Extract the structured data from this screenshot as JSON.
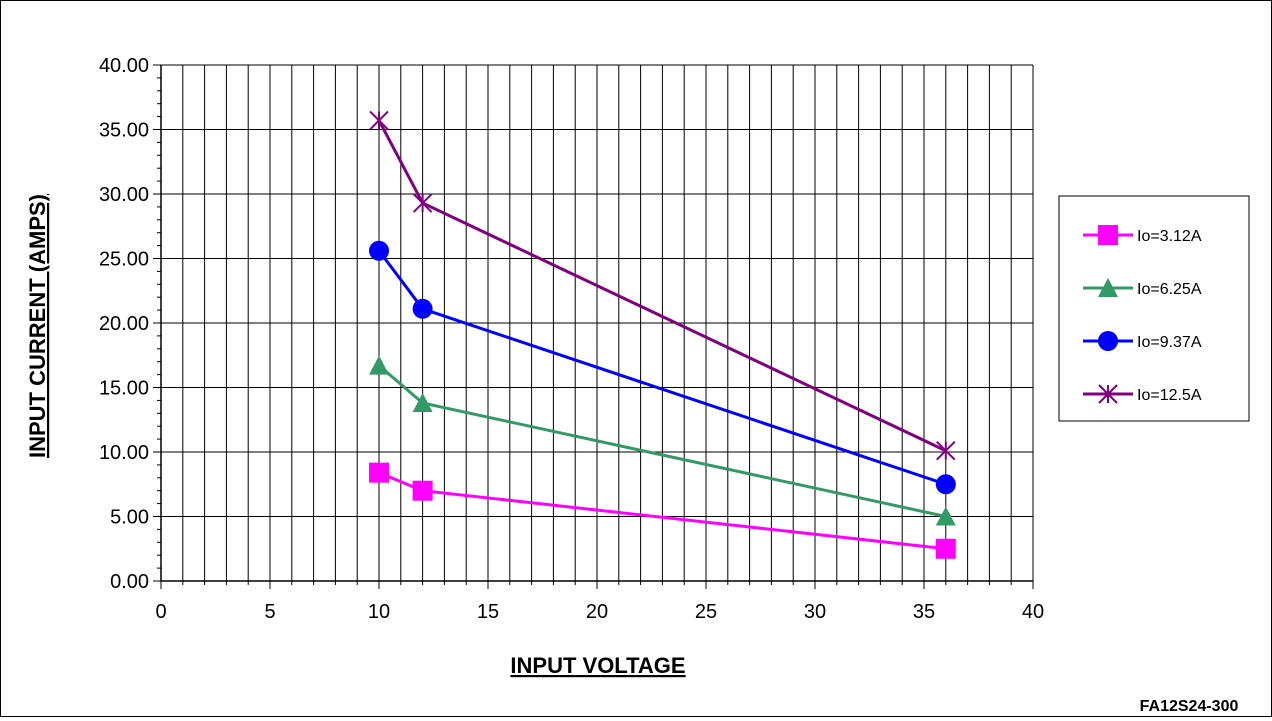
{
  "chart_data": {
    "type": "line",
    "title": "",
    "xlabel": "INPUT VOLTAGE",
    "ylabel": "INPUT CURRENT (AMPS)",
    "xlim": [
      0,
      40
    ],
    "ylim": [
      0,
      40
    ],
    "x_ticks": [
      0,
      5,
      10,
      15,
      20,
      25,
      30,
      35,
      40
    ],
    "y_ticks": [
      "0.00",
      "5.00",
      "10.00",
      "15.00",
      "20.00",
      "25.00",
      "30.00",
      "35.00",
      "40.00"
    ],
    "grid": true,
    "legend_position": "right",
    "series": [
      {
        "name": "Io=3.12A",
        "color": "#ff00ff",
        "marker": "square",
        "points": [
          {
            "x": 10,
            "y": 8.4
          },
          {
            "x": 12,
            "y": 7.0
          },
          {
            "x": 36,
            "y": 2.5
          }
        ]
      },
      {
        "name": "Io=6.25A",
        "color": "#339966",
        "marker": "triangle",
        "points": [
          {
            "x": 10,
            "y": 16.7
          },
          {
            "x": 12,
            "y": 13.8
          },
          {
            "x": 36,
            "y": 5.0
          }
        ]
      },
      {
        "name": "Io=9.37A",
        "color": "#0000ff",
        "marker": "circle",
        "points": [
          {
            "x": 10,
            "y": 25.6
          },
          {
            "x": 12,
            "y": 21.1
          },
          {
            "x": 36,
            "y": 7.5
          }
        ]
      },
      {
        "name": "Io=12.5A",
        "color": "#800080",
        "marker": "asterisk",
        "points": [
          {
            "x": 10,
            "y": 35.7
          },
          {
            "x": 12,
            "y": 29.3
          },
          {
            "x": 36,
            "y": 10.1
          }
        ]
      }
    ]
  },
  "figure_code": "FA12S24-300"
}
